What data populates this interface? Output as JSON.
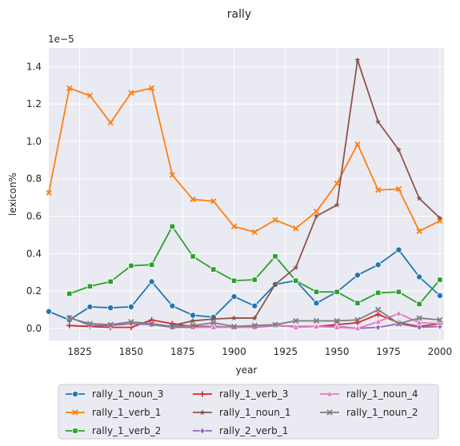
{
  "chart_data": {
    "type": "line",
    "title": "rally",
    "xlabel": "year",
    "ylabel": "lexicon%",
    "y_scale_label": "1e−5",
    "xlim": [
      1810,
      2002
    ],
    "ylim": [
      -0.065,
      1.5
    ],
    "xticks": [
      1825,
      1850,
      1875,
      1900,
      1925,
      1950,
      1975,
      2000
    ],
    "yticks": [
      0.0,
      0.2,
      0.4,
      0.6,
      0.8,
      1.0,
      1.2,
      1.4
    ],
    "ytick_labels": [
      "0.0",
      "0.2",
      "0.4",
      "0.6",
      "0.8",
      "1.0",
      "1.2",
      "1.4"
    ],
    "grid": true,
    "background": "#eaeaf2",
    "legend_position": "bottom-center",
    "series": [
      {
        "name": "rally_1_noun_3",
        "color": "#1f77b4",
        "marker": "circle",
        "x": [
          1810,
          1820,
          1830,
          1840,
          1850,
          1860,
          1870,
          1880,
          1890,
          1900,
          1910,
          1920,
          1930,
          1940,
          1950,
          1960,
          1970,
          1980,
          1990,
          2000
        ],
        "y": [
          0.09,
          0.045,
          0.115,
          0.11,
          0.115,
          0.25,
          0.12,
          0.07,
          0.06,
          0.17,
          0.12,
          0.235,
          0.255,
          0.135,
          0.195,
          0.285,
          0.34,
          0.42,
          0.275,
          0.175
        ]
      },
      {
        "name": "rally_1_verb_1",
        "color": "#ff7f0e",
        "marker": "x",
        "x": [
          1810,
          1820,
          1830,
          1840,
          1850,
          1860,
          1870,
          1880,
          1890,
          1900,
          1910,
          1920,
          1930,
          1940,
          1950,
          1960,
          1970,
          1980,
          1990,
          2000
        ],
        "y": [
          0.725,
          1.285,
          1.245,
          1.1,
          1.26,
          1.285,
          0.82,
          0.69,
          0.68,
          0.545,
          0.515,
          0.58,
          0.535,
          0.625,
          0.775,
          0.985,
          0.74,
          0.745,
          0.52,
          0.575
        ]
      },
      {
        "name": "rally_1_verb_2",
        "color": "#2ca02c",
        "marker": "square",
        "x": [
          1820,
          1830,
          1840,
          1850,
          1860,
          1870,
          1880,
          1890,
          1900,
          1910,
          1920,
          1930,
          1940,
          1950,
          1960,
          1970,
          1980,
          1990,
          2000
        ],
        "y": [
          0.185,
          0.225,
          0.25,
          0.335,
          0.34,
          0.545,
          0.385,
          0.315,
          0.255,
          0.26,
          0.385,
          0.255,
          0.195,
          0.195,
          0.135,
          0.19,
          0.195,
          0.13,
          0.26
        ]
      },
      {
        "name": "rally_1_verb_3",
        "color": "#d62728",
        "marker": "plus",
        "x": [
          1820,
          1830,
          1840,
          1850,
          1860,
          1870,
          1880,
          1890,
          1900,
          1910,
          1920,
          1930,
          1940,
          1950,
          1960,
          1970,
          1980,
          1990,
          2000
        ],
        "y": [
          0.015,
          0.01,
          0.005,
          0.005,
          0.045,
          0.025,
          0.01,
          0.01,
          0.005,
          0.005,
          0.015,
          0.01,
          0.01,
          0.02,
          0.03,
          0.075,
          0.03,
          0.01,
          0.025
        ]
      },
      {
        "name": "rally_2_verb_1",
        "color": "#9467bd",
        "marker": "diamond",
        "x": [
          1820,
          1830,
          1840,
          1850,
          1860,
          1870,
          1880,
          1890,
          1900,
          1910,
          1920,
          1930,
          1940,
          1950,
          1960,
          1970,
          1980,
          1990,
          2000
        ],
        "y": [
          0.06,
          0.015,
          0.015,
          0.025,
          0.02,
          0.005,
          0.005,
          0.01,
          0.005,
          0.005,
          0.015,
          0.01,
          0.01,
          0.01,
          0.0,
          0.005,
          0.025,
          0.005,
          0.01
        ]
      },
      {
        "name": "rally_1_noun_1",
        "color": "#8c564b",
        "marker": "star",
        "x": [
          1870,
          1880,
          1890,
          1900,
          1910,
          1920,
          1930,
          1940,
          1950,
          1960,
          1970,
          1980,
          1990,
          2000
        ],
        "y": [
          0.015,
          0.04,
          0.05,
          0.055,
          0.055,
          0.235,
          0.325,
          0.6,
          0.66,
          1.435,
          1.105,
          0.955,
          0.695,
          0.59
        ]
      },
      {
        "name": "rally_1_noun_4",
        "color": "#e377c2",
        "marker": "triangle",
        "x": [
          1880,
          1890,
          1900,
          1910,
          1920,
          1930,
          1940,
          1950,
          1960,
          1970,
          1980,
          1990,
          2000
        ],
        "y": [
          0.005,
          0.005,
          0.005,
          0.005,
          0.02,
          0.005,
          0.01,
          0.005,
          0.0,
          0.035,
          0.08,
          0.03,
          0.025
        ]
      },
      {
        "name": "rally_1_noun_2",
        "color": "#7f7f7f",
        "marker": "x",
        "x": [
          1820,
          1830,
          1840,
          1850,
          1860,
          1870,
          1880,
          1890,
          1900,
          1910,
          1920,
          1930,
          1940,
          1950,
          1960,
          1970,
          1980,
          1990,
          2000
        ],
        "y": [
          0.055,
          0.025,
          0.02,
          0.035,
          0.025,
          0.01,
          0.015,
          0.03,
          0.01,
          0.015,
          0.02,
          0.04,
          0.04,
          0.04,
          0.045,
          0.1,
          0.025,
          0.055,
          0.045
        ]
      }
    ]
  }
}
